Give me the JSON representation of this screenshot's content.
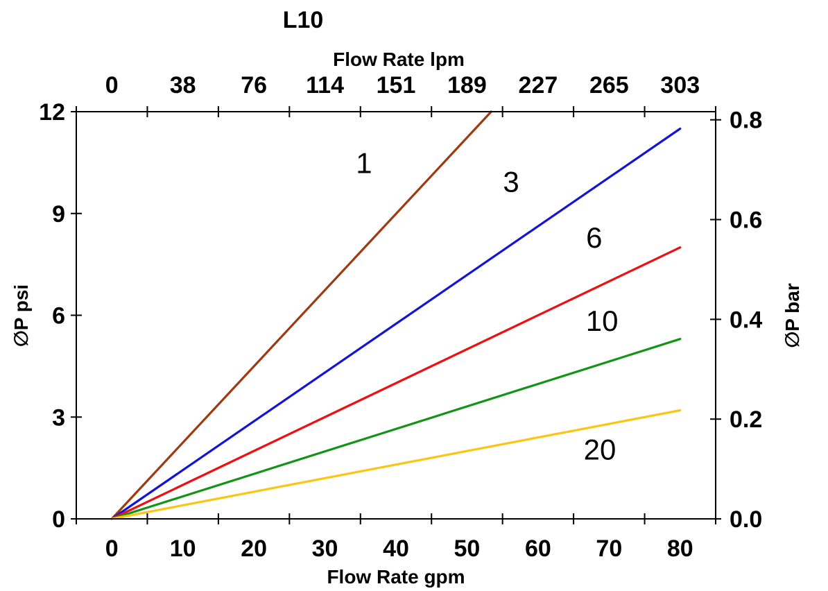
{
  "chart_data": {
    "type": "line",
    "title": "L10",
    "axes": {
      "top": {
        "label": "Flow Rate lpm",
        "tick_labels": [
          "0",
          "38",
          "76",
          "114",
          "151",
          "189",
          "227",
          "265",
          "303"
        ]
      },
      "bottom": {
        "label": "Flow Rate gpm",
        "tick_labels": [
          "0",
          "10",
          "20",
          "30",
          "40",
          "50",
          "60",
          "70",
          "80"
        ]
      },
      "left": {
        "label": "∅P psi",
        "tick_labels": [
          "0",
          "3",
          "6",
          "9",
          "12"
        ],
        "range": [
          0,
          12
        ]
      },
      "right": {
        "label": "∅P bar",
        "tick_labels": [
          "0.0",
          "0.2",
          "0.4",
          "0.6",
          "0.8"
        ],
        "range": [
          0,
          0.8
        ],
        "psi_per_bar": 14.7
      }
    },
    "x_axis_units": "gpm",
    "x_range": [
      0,
      80
    ],
    "y_range_psi": [
      0,
      12
    ],
    "grid": false,
    "legend": "inline labels on curves",
    "series": [
      {
        "name": "1",
        "color": "#9E3A12",
        "points": [
          [
            0,
            0
          ],
          [
            53.4,
            12.0
          ]
        ],
        "label_at": [
          35.5,
          10.5
        ]
      },
      {
        "name": "3",
        "color": "#1414D6",
        "points": [
          [
            0,
            0
          ],
          [
            80,
            11.5
          ]
        ],
        "label_at": [
          56.2,
          9.95
        ]
      },
      {
        "name": "6",
        "color": "#EE1010",
        "points": [
          [
            0,
            0
          ],
          [
            80,
            8.0
          ]
        ],
        "label_at": [
          67.9,
          8.3
        ]
      },
      {
        "name": "10",
        "color": "#149417",
        "points": [
          [
            0,
            0
          ],
          [
            80,
            5.3
          ]
        ],
        "label_at": [
          69.0,
          5.85
        ]
      },
      {
        "name": "20",
        "color": "#FCC513",
        "points": [
          [
            0,
            0
          ],
          [
            80,
            3.2
          ]
        ],
        "label_at": [
          68.7,
          2.05
        ]
      }
    ]
  }
}
